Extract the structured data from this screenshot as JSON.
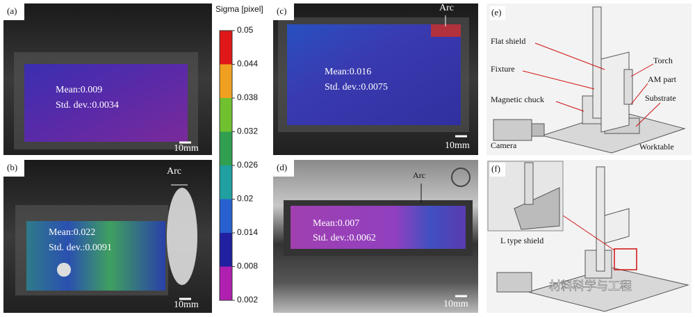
{
  "panels": {
    "a": {
      "label": "(a)",
      "mean": "Mean:0.009",
      "std": "Std. dev.:0.0034",
      "scale": "10mm"
    },
    "b": {
      "label": "(b)",
      "arc": "Arc",
      "mean": "Mean:0.022",
      "std": "Std. dev.:0.0091",
      "scale": "10mm"
    },
    "c": {
      "label": "(c)",
      "arc": "Arc",
      "mean": "Mean:0.016",
      "std": "Std. dev.:0.0075",
      "scale": "10mm"
    },
    "d": {
      "label": "(d)",
      "arc": "Arc",
      "mean": "Mean:0.007",
      "std": "Std. dev.:0.0062",
      "scale": "10mm"
    },
    "e": {
      "label": "(e)",
      "parts": [
        "Flat shield",
        "Torch",
        "Fixture",
        "AM part",
        "Magnetic chuck",
        "Substrate",
        "Camera",
        "Worktable"
      ]
    },
    "f": {
      "label": "(f)",
      "inset": "L type shield"
    }
  },
  "colorbar": {
    "title": "Sigma [pixel]",
    "ticks": [
      0.05,
      0.044,
      0.038,
      0.032,
      0.026,
      0.02,
      0.014,
      0.008,
      0.002
    ]
  },
  "watermark": "材料科学与工程"
}
